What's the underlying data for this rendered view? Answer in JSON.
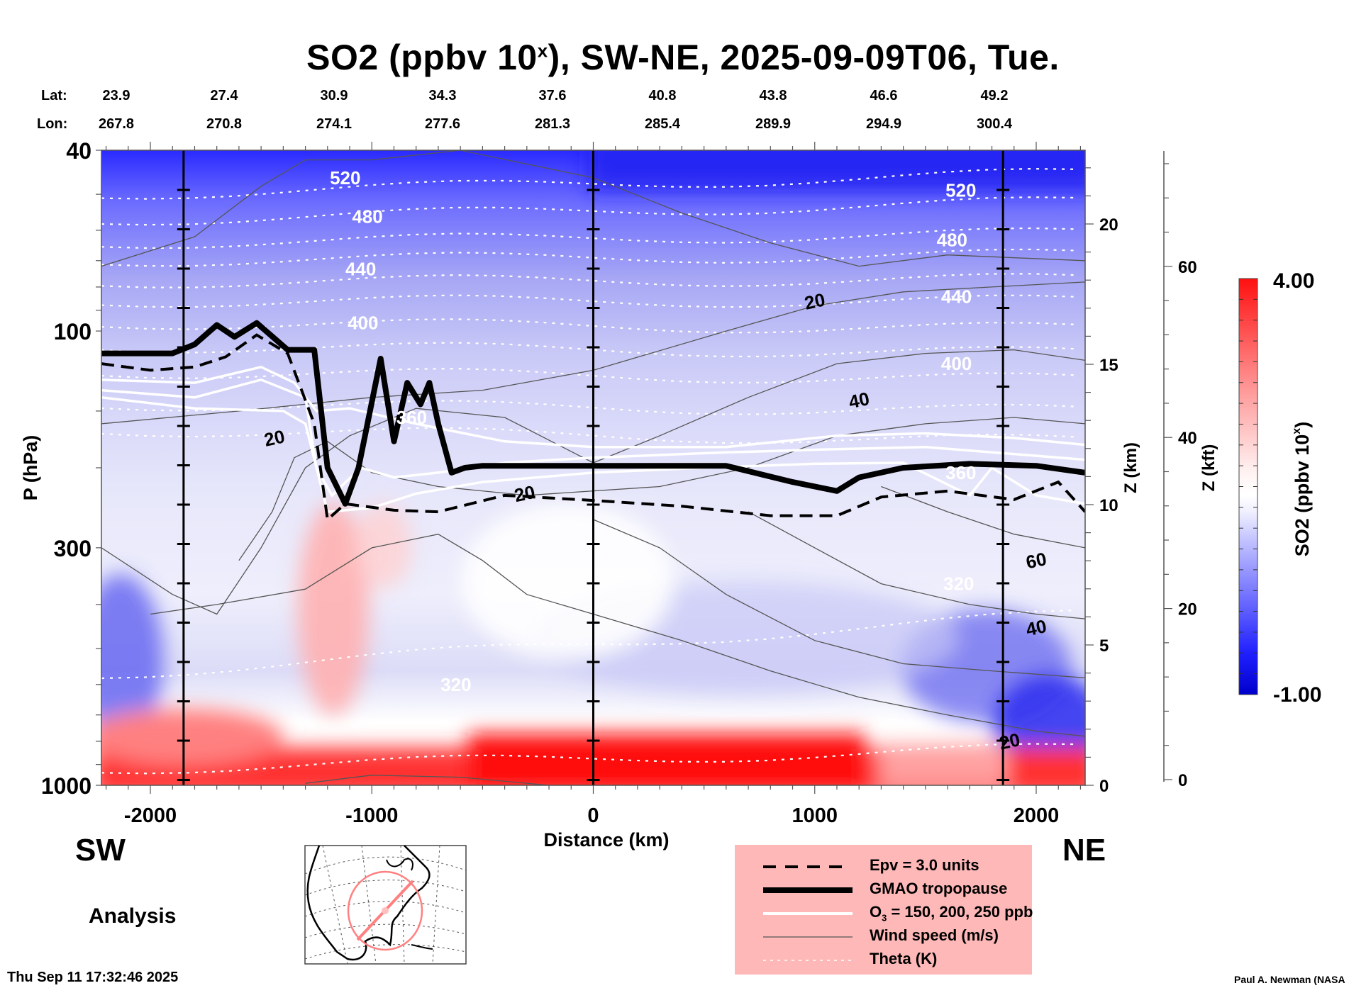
{
  "chart_data": {
    "type": "heatmap",
    "title": {
      "prefix": "SO2 (ppbv 10",
      "superscript": "x",
      "suffix": "), SW-NE, 2025-09-09T06, Tue."
    },
    "xlabel": "Distance (km)",
    "ylabel": "P (hPa)",
    "xlim": [
      -2221,
      2221
    ],
    "ylim": [
      1000,
      40
    ],
    "yscale": "log",
    "x_ticks": [
      -2000,
      -1000,
      0,
      1000,
      2000
    ],
    "y_ticks": [
      40,
      100,
      300,
      1000
    ],
    "section_lines_km": [
      -1850,
      0,
      1850
    ],
    "lat_lon": {
      "lat_label": "Lat:",
      "lon_label": "Lon:",
      "lat": [
        "23.9",
        "27.4",
        "30.9",
        "34.3",
        "37.6",
        "40.8",
        "43.8",
        "46.6",
        "49.2"
      ],
      "lon": [
        "267.8",
        "270.8",
        "274.1",
        "277.6",
        "281.3",
        "285.4",
        "289.9",
        "294.9",
        "300.4"
      ]
    },
    "right_axis_km": {
      "label": "Z (km)",
      "ticks": [
        0,
        5,
        10,
        15,
        20
      ]
    },
    "right_axis_kft": {
      "label": "Z (kft)",
      "ticks": [
        0,
        20,
        40,
        60
      ]
    },
    "colorbar": {
      "label_prefix": "SO2 (ppbv 10",
      "label_superscript": "x",
      "label_suffix": ")",
      "min": -1.0,
      "max": 4.0,
      "min_label": "-1.00",
      "max_label": "4.00",
      "levels": 20,
      "colors": {
        "low": "#0000cc",
        "mid": "#ffffff",
        "high": "#ff0000"
      }
    },
    "theta_contours_K": [
      {
        "value": 320,
        "label_positions_km": [
          [
            -620,
            600
          ],
          [
            1650,
            360
          ]
        ]
      },
      {
        "value": 360,
        "label_positions_km": [
          [
            -820,
            155
          ],
          [
            1660,
            205
          ]
        ]
      },
      {
        "value": 400,
        "label_positions_km": [
          [
            -1040,
            96
          ],
          [
            1640,
            118
          ]
        ]
      },
      {
        "value": 440,
        "label_positions_km": [
          [
            -1050,
            73
          ],
          [
            1640,
            84
          ]
        ]
      },
      {
        "value": 480,
        "label_positions_km": [
          [
            -1020,
            56
          ],
          [
            1620,
            63
          ]
        ]
      },
      {
        "value": 520,
        "label_positions_km": [
          [
            -1120,
            46
          ],
          [
            1660,
            49
          ]
        ]
      }
    ],
    "wind_speed_labels_ms": [
      {
        "value": "20",
        "km": 1000,
        "hPa": 86
      },
      {
        "value": "40",
        "km": 1200,
        "hPa": 142
      },
      {
        "value": "20",
        "km": -1440,
        "hPa": 172
      },
      {
        "value": "20",
        "km": -310,
        "hPa": 228
      },
      {
        "value": "60",
        "km": 2000,
        "hPa": 320
      },
      {
        "value": "40",
        "km": 2000,
        "hPa": 450
      },
      {
        "value": "20",
        "km": 1880,
        "hPa": 800
      }
    ],
    "tropopause_hPa": {
      "km": [
        -2221,
        -1900,
        -1800,
        -1700,
        -1620,
        -1520,
        -1380,
        -1260,
        -1200,
        -1120,
        -1060,
        -960,
        -900,
        -840,
        -780,
        -740,
        -700,
        -640,
        -580,
        -500,
        0,
        600,
        900,
        1100,
        1200,
        1400,
        1700,
        2000,
        2221
      ],
      "hPa": [
        112,
        112,
        107,
        97,
        103,
        96,
        110,
        110,
        200,
        240,
        200,
        115,
        175,
        130,
        145,
        130,
        160,
        205,
        200,
        198,
        198,
        198,
        215,
        225,
        210,
        200,
        196,
        198,
        205
      ]
    },
    "epv_3_hPa": {
      "km": [
        -2221,
        -2000,
        -1800,
        -1660,
        -1520,
        -1380,
        -1260,
        -1200,
        -1120,
        -900,
        -700,
        -400,
        0,
        400,
        800,
        1100,
        1300,
        1600,
        1900,
        2100,
        2221
      ],
      "hPa": [
        118,
        122,
        120,
        114,
        102,
        112,
        160,
        260,
        240,
        248,
        250,
        230,
        236,
        243,
        255,
        255,
        232,
        225,
        235,
        215,
        250
      ]
    },
    "legend": {
      "position": "bottom-center",
      "entries": [
        {
          "style": "dashed-thick",
          "label": "Epv = 3.0 units"
        },
        {
          "style": "solid-bold",
          "label": "GMAO tropopause"
        },
        {
          "style": "solid-white",
          "label_prefix": "O",
          "label_sub": "3",
          "label_suffix": " = 150, 200, 250 ppb"
        },
        {
          "style": "solid-thin",
          "label": "Wind speed (m/s)"
        },
        {
          "style": "dotted-white",
          "label": "Theta (K)"
        }
      ]
    }
  },
  "annotations": {
    "sw": "SW",
    "ne": "NE",
    "analysis": "Analysis",
    "timestamp": "Thu Sep 11 17:32:46 2025",
    "credit": "Paul A. Newman (NASA"
  },
  "inset_map": {
    "description": "North America map with SW-NE cross-section path and range circle",
    "path_color": "#ff8080"
  }
}
